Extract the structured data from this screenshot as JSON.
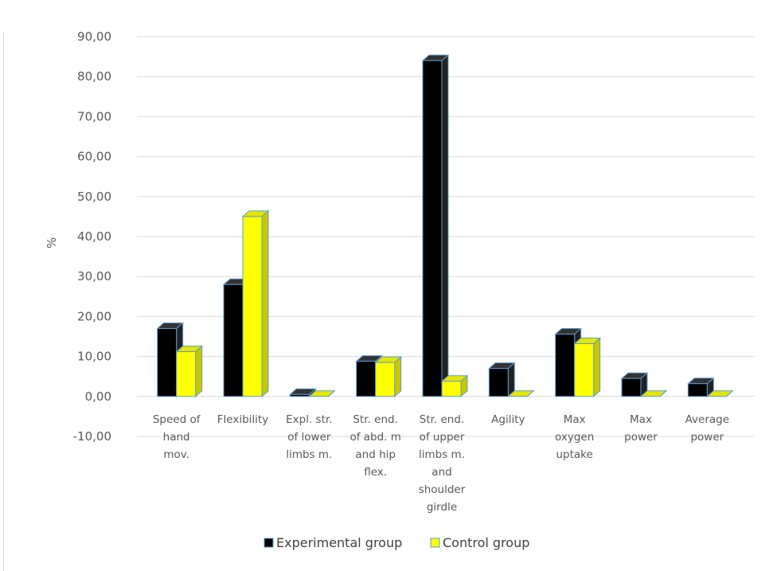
{
  "chart_data": {
    "type": "bar",
    "ylabel": "%",
    "ylim": [
      -10,
      90
    ],
    "yticks": [
      "90,00",
      "80,00",
      "70,00",
      "60,00",
      "50,00",
      "40,00",
      "30,00",
      "20,00",
      "10,00",
      "0,00",
      "-10,00"
    ],
    "yticks_values": [
      90,
      80,
      70,
      60,
      50,
      40,
      30,
      20,
      10,
      0,
      -10
    ],
    "grid": true,
    "legend_position": "bottom",
    "categories": [
      [
        "Speed of",
        "hand",
        "mov."
      ],
      [
        "Flexibility"
      ],
      [
        "Expl. str.",
        "of lower",
        "limbs m."
      ],
      [
        "Str. end.",
        "of abd. m",
        "and hip",
        "flex."
      ],
      [
        "Str. end.",
        "of upper",
        "limbs m.",
        "and",
        "shoulder",
        "girdle"
      ],
      [
        "Agility"
      ],
      [
        "Max",
        "oxygen",
        "uptake"
      ],
      [
        "Max",
        "power"
      ],
      [
        "Average",
        "power"
      ]
    ],
    "series": [
      {
        "name": "Experimental group",
        "color": "#000000",
        "side_color": "#222222",
        "top_color": "#333333",
        "values": [
          17.0,
          28.0,
          0.5,
          8.8,
          84.0,
          7.0,
          15.6,
          4.5,
          3.2
        ]
      },
      {
        "name": "Control group",
        "color": "#ffff00",
        "side_color": "#c8c800",
        "top_color": "#e6e600",
        "values": [
          11.2,
          45.0,
          0.0,
          8.5,
          3.8,
          0.0,
          13.2,
          0.0,
          0.0
        ]
      }
    ],
    "bar_outline": "#5b9bd5"
  }
}
